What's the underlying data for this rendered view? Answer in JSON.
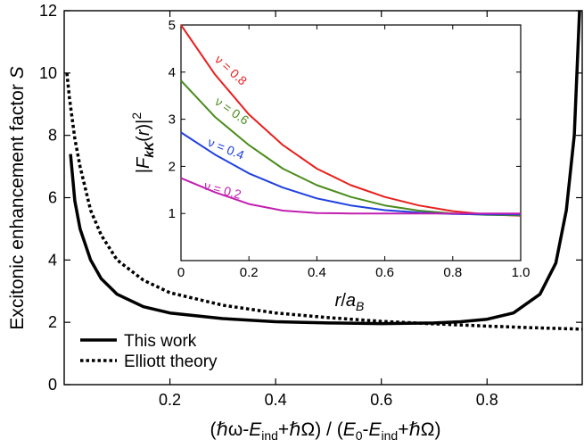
{
  "chart_data": [
    {
      "type": "line",
      "title": "",
      "xlabel": "(ℏω-E_ind+ℏΩ) / (E_0-E_ind+ℏΩ)",
      "ylabel": "Excitonic enhancement factor S",
      "xlim": [
        0.0,
        0.98
      ],
      "ylim": [
        0,
        12
      ],
      "xticks": [
        "0.2",
        "0.4",
        "0.6",
        "0.8"
      ],
      "yticks": [
        "0",
        "2",
        "4",
        "6",
        "8",
        "10",
        "12"
      ],
      "grid": false,
      "legend_position": "bottom-left",
      "series": [
        {
          "name": "This work",
          "style": "solid",
          "color": "#000000",
          "x": [
            0.012,
            0.02,
            0.03,
            0.05,
            0.07,
            0.1,
            0.15,
            0.2,
            0.3,
            0.4,
            0.5,
            0.6,
            0.7,
            0.75,
            0.8,
            0.85,
            0.9,
            0.93,
            0.95,
            0.965,
            0.975
          ],
          "y": [
            7.4,
            5.9,
            5.0,
            4.0,
            3.4,
            2.9,
            2.5,
            2.3,
            2.12,
            2.02,
            1.98,
            1.96,
            1.98,
            2.02,
            2.1,
            2.3,
            2.9,
            3.9,
            5.6,
            8.0,
            12.0
          ]
        },
        {
          "name": "Elliott theory",
          "style": "dashed",
          "color": "#000000",
          "x": [
            0.005,
            0.01,
            0.02,
            0.03,
            0.05,
            0.07,
            0.1,
            0.15,
            0.2,
            0.3,
            0.4,
            0.5,
            0.6,
            0.7,
            0.8,
            0.9,
            0.98
          ],
          "y": [
            10.0,
            9.2,
            7.9,
            7.0,
            5.6,
            4.8,
            4.0,
            3.35,
            2.95,
            2.55,
            2.3,
            2.15,
            2.03,
            1.95,
            1.88,
            1.82,
            1.78
          ]
        }
      ]
    },
    {
      "type": "line",
      "title": "",
      "xlabel": "r/a_B",
      "ylabel": "|F_kK(r)|^2",
      "xlim": [
        0,
        1.0
      ],
      "ylim": [
        0,
        5
      ],
      "xticks": [
        "0",
        "0.2",
        "0.4",
        "0.6",
        "0.8",
        "1.0"
      ],
      "yticks": [
        "0",
        "1",
        "2",
        "3",
        "4",
        "5"
      ],
      "grid": false,
      "series": [
        {
          "name": "ν = 0.8",
          "color": "#e8201e",
          "x": [
            0,
            0.1,
            0.2,
            0.3,
            0.4,
            0.5,
            0.6,
            0.7,
            0.8,
            0.9,
            1.0
          ],
          "y": [
            5.0,
            3.95,
            3.1,
            2.45,
            1.95,
            1.6,
            1.35,
            1.17,
            1.05,
            0.98,
            0.95
          ]
        },
        {
          "name": "ν = 0.6",
          "color": "#4a8c1c",
          "x": [
            0,
            0.1,
            0.2,
            0.3,
            0.4,
            0.5,
            0.6,
            0.7,
            0.8,
            0.9,
            1.0
          ],
          "y": [
            3.82,
            3.05,
            2.45,
            1.95,
            1.6,
            1.35,
            1.17,
            1.06,
            1.0,
            0.97,
            0.96
          ]
        },
        {
          "name": "ν = 0.4",
          "color": "#2040e0",
          "x": [
            0,
            0.1,
            0.2,
            0.3,
            0.4,
            0.5,
            0.6,
            0.7,
            0.8,
            0.9,
            1.0
          ],
          "y": [
            2.72,
            2.25,
            1.85,
            1.55,
            1.32,
            1.17,
            1.07,
            1.02,
            0.99,
            0.98,
            0.98
          ]
        },
        {
          "name": "ν = 0.2",
          "color": "#c020b0",
          "x": [
            0,
            0.1,
            0.2,
            0.3,
            0.4,
            0.5,
            0.6,
            0.7,
            0.8,
            0.9,
            1.0
          ],
          "y": [
            1.75,
            1.45,
            1.2,
            1.06,
            1.01,
            1.0,
            1.0,
            1.0,
            1.0,
            1.0,
            1.0
          ]
        }
      ]
    }
  ]
}
